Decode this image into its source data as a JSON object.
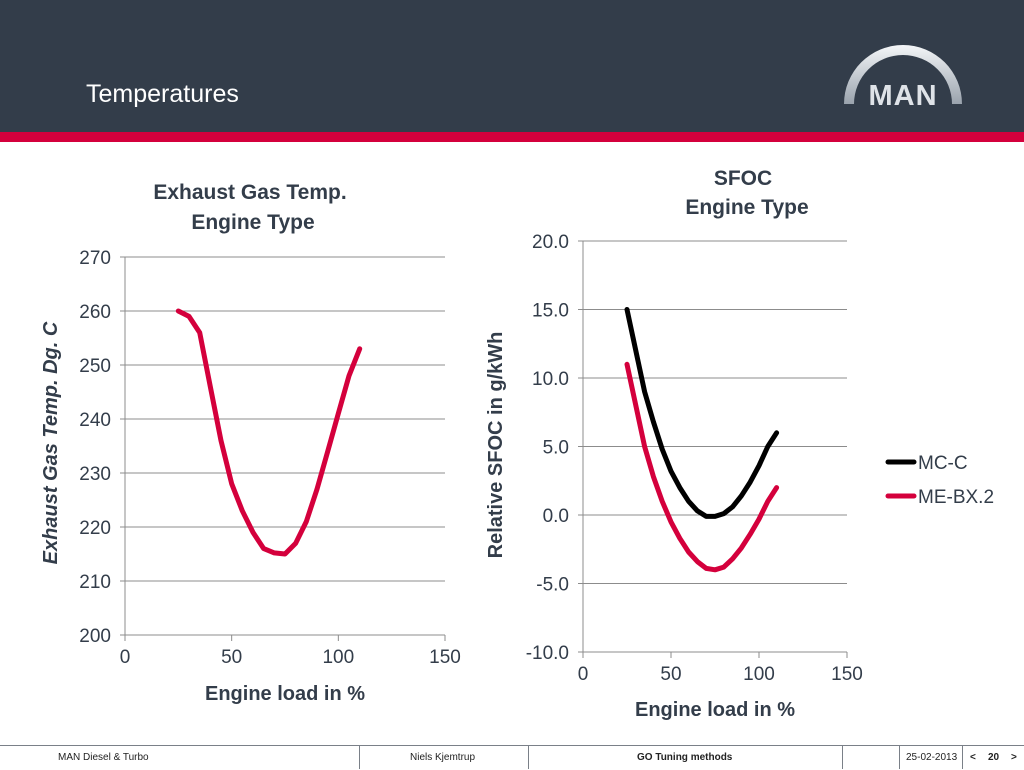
{
  "header": {
    "title": "Temperatures",
    "logo_text": "MAN"
  },
  "footer": {
    "company": "MAN Diesel & Turbo",
    "author": "Niels Kjemtrup",
    "topic": "GO Tuning methods",
    "date": "25-02-2013",
    "prev": "<",
    "page": "20",
    "next": ">"
  },
  "colors": {
    "header_bg": "#333d4a",
    "accent": "#d4003c",
    "mc_c": "#000000",
    "me_bx2": "#d4003c"
  },
  "chart_data": [
    {
      "type": "line",
      "title": "Exhaust Gas Temp.",
      "subtitle": "Engine Type",
      "xlabel": "Engine load in %",
      "ylabel": "Exhaust Gas Temp. Dg. C",
      "xlim": [
        0,
        150
      ],
      "ylim": [
        200,
        270
      ],
      "xticks": [
        "0",
        "50",
        "100",
        "150"
      ],
      "yticks": [
        "200",
        "210",
        "220",
        "230",
        "240",
        "250",
        "260",
        "270"
      ],
      "series": [
        {
          "name": "ME-BX.2",
          "color": "#d4003c",
          "x": [
            25,
            30,
            35,
            40,
            45,
            50,
            55,
            60,
            65,
            70,
            75,
            80,
            85,
            90,
            95,
            100,
            105,
            110
          ],
          "y": [
            260,
            259,
            256,
            246,
            236,
            228,
            223,
            219,
            216,
            215.2,
            215,
            217,
            221,
            227,
            234,
            241,
            248,
            253
          ]
        }
      ]
    },
    {
      "type": "line",
      "title": "SFOC",
      "subtitle": "Engine Type",
      "xlabel": "Engine load in %",
      "ylabel": "Relative SFOC  in g/kWh",
      "xlim": [
        0,
        150
      ],
      "ylim": [
        -10,
        20
      ],
      "xticks": [
        "0",
        "50",
        "100",
        "150"
      ],
      "yticks": [
        "-10.0",
        "-5.0",
        "0.0",
        "5.0",
        "10.0",
        "15.0",
        "20.0"
      ],
      "legend": [
        "MC-C",
        "ME-BX.2"
      ],
      "series": [
        {
          "name": "MC-C",
          "color": "#000000",
          "x": [
            25,
            30,
            35,
            40,
            45,
            50,
            55,
            60,
            65,
            70,
            75,
            80,
            85,
            90,
            95,
            100,
            105,
            110
          ],
          "y": [
            15,
            12,
            9,
            6.8,
            4.8,
            3.2,
            2,
            1,
            0.3,
            -0.1,
            -0.1,
            0.1,
            0.6,
            1.4,
            2.4,
            3.6,
            5,
            6
          ]
        },
        {
          "name": "ME-BX.2",
          "color": "#d4003c",
          "x": [
            25,
            30,
            35,
            40,
            45,
            50,
            55,
            60,
            65,
            70,
            75,
            80,
            85,
            90,
            95,
            100,
            105,
            110
          ],
          "y": [
            11,
            8,
            5,
            2.8,
            1,
            -0.5,
            -1.7,
            -2.7,
            -3.4,
            -3.9,
            -4,
            -3.8,
            -3.2,
            -2.4,
            -1.4,
            -0.3,
            1,
            2
          ]
        }
      ]
    }
  ]
}
